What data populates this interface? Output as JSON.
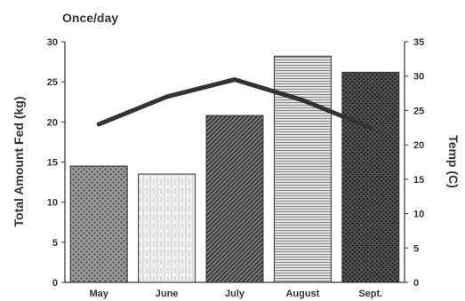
{
  "chart_data": {
    "type": "bar",
    "title": "Once/day",
    "categories": [
      "May",
      "June",
      "July",
      "August",
      "Sept."
    ],
    "series": [
      {
        "name": "Total Amount Fed (kg)",
        "type": "bar",
        "axis": "left",
        "values": [
          14.5,
          13.5,
          20.8,
          28.2,
          26.2
        ]
      },
      {
        "name": "Temp (C)",
        "type": "line",
        "axis": "right",
        "values": [
          23.0,
          27.0,
          29.5,
          26.5,
          22.5
        ]
      }
    ],
    "ylabel": "Total Amount Fed (kg)",
    "y2label": "Temp (C)",
    "ylim": [
      0,
      30
    ],
    "y2lim": [
      0,
      35
    ],
    "yticks": [
      0,
      5,
      10,
      15,
      20,
      25,
      30
    ],
    "y2ticks": [
      0,
      5,
      10,
      15,
      20,
      25,
      30,
      35
    ],
    "grid": false,
    "legend": "none",
    "colors": {
      "line": "#333333",
      "bars": [
        "#7a7a7a",
        "#e6e6e6",
        "#4a4a4a",
        "#bdbdbd",
        "#3a3a3a"
      ]
    }
  }
}
